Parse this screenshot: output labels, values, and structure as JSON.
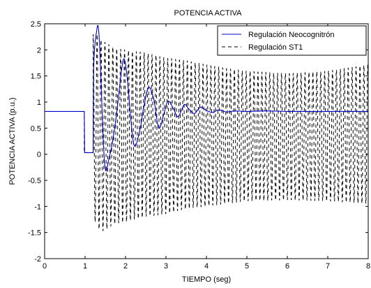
{
  "chart_data": {
    "type": "line",
    "title": "POTENCIA ACTIVA",
    "xlabel": "TIEMPO (seg)",
    "ylabel": "POTENCIA ACTIVA (p.u.)",
    "xlim": [
      0,
      8
    ],
    "ylim": [
      -2,
      2.5
    ],
    "xticks": [
      "0",
      "1",
      "2",
      "3",
      "4",
      "5",
      "6",
      "7",
      "8"
    ],
    "yticks": [
      "-2",
      "-1.5",
      "-1",
      "-0.5",
      "0",
      "0.5",
      "1",
      "1.5",
      "2",
      "2.5"
    ],
    "grid": false,
    "legend_position": "top-right",
    "series": [
      {
        "name": "Regulación Neocognitrón",
        "color": "#0000cc",
        "style": "solid",
        "x": [
          0,
          0.98,
          0.99,
          1.2,
          1.21,
          1.28,
          1.35,
          1.48,
          1.6,
          1.75,
          1.9,
          1.97,
          2.05,
          2.2,
          2.35,
          2.45,
          2.57,
          2.7,
          2.82,
          2.95,
          3.05,
          3.18,
          3.3,
          3.45,
          3.55,
          3.7,
          3.85,
          4.0,
          4.15,
          4.3,
          4.5,
          4.7,
          5.0,
          5.5,
          6.0,
          7.0,
          8.0
        ],
        "y": [
          0.82,
          0.82,
          0.03,
          0.03,
          1.6,
          2.33,
          2.22,
          -0.15,
          -0.05,
          0.6,
          1.6,
          1.82,
          1.4,
          0.2,
          0.45,
          0.9,
          1.28,
          1.05,
          0.5,
          0.78,
          1.02,
          0.88,
          0.72,
          0.95,
          0.88,
          0.78,
          0.9,
          0.84,
          0.8,
          0.85,
          0.81,
          0.83,
          0.82,
          0.83,
          0.82,
          0.82,
          0.82
        ]
      },
      {
        "name": "Regulación ST1",
        "color": "#000000",
        "style": "dashed",
        "period": 0.097,
        "center": 0.4,
        "pre_fault_value": 0.82,
        "fault_start": 0.98,
        "fault_end": 1.2,
        "fault_value": 0.03,
        "envelope_times": [
          1.2,
          1.3,
          1.4,
          1.7,
          2.0,
          2.5,
          3.0,
          3.5,
          4.0,
          4.5,
          5.0,
          6.0,
          7.0,
          8.0
        ],
        "envelope_upper": [
          2.3,
          2.3,
          2.2,
          2.05,
          2.0,
          1.95,
          1.85,
          1.8,
          1.72,
          1.65,
          1.6,
          1.55,
          1.6,
          1.72
        ],
        "envelope_lower": [
          -1.2,
          -1.4,
          -1.5,
          -1.35,
          -1.3,
          -1.2,
          -1.15,
          -1.05,
          -1.0,
          -0.95,
          -0.9,
          -0.88,
          -0.9,
          -0.95
        ]
      }
    ]
  }
}
